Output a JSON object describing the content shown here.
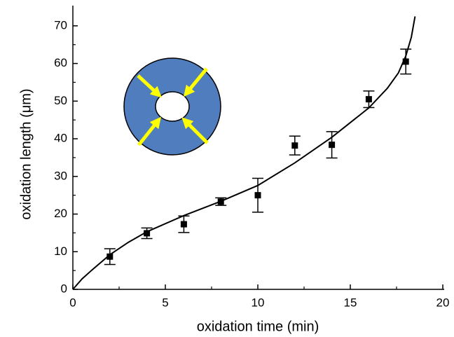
{
  "chart_data": {
    "type": "scatter",
    "x_label": "oxidation time (min)",
    "y_label": "oxidation length (μm)",
    "xlim": [
      0,
      20
    ],
    "xticks": [
      0,
      5,
      10,
      15,
      20
    ],
    "ylim": [
      0,
      75
    ],
    "yticks": [
      0,
      10,
      20,
      30,
      40,
      50,
      60,
      70
    ],
    "color": "#000000",
    "x": [
      2,
      4,
      6,
      8,
      10,
      12,
      14,
      16,
      18
    ],
    "values": [
      8.7,
      14.9,
      17.3,
      23.3,
      25.0,
      38.2,
      38.4,
      50.5,
      60.5
    ],
    "errors": [
      2.1,
      1.4,
      2.2,
      1.0,
      4.5,
      2.5,
      3.5,
      2.2,
      3.3
    ],
    "fit": {
      "x": [
        0,
        0.5,
        1,
        2,
        3,
        4,
        6,
        8,
        10,
        12,
        14,
        16,
        17,
        17.6,
        18,
        18.3,
        18.5
      ],
      "y": [
        0,
        2.8,
        5,
        9.2,
        12.5,
        15.3,
        19.6,
        23.4,
        27.6,
        33.6,
        40.4,
        48.2,
        53.4,
        57.5,
        62,
        67,
        72.5
      ]
    }
  }
}
